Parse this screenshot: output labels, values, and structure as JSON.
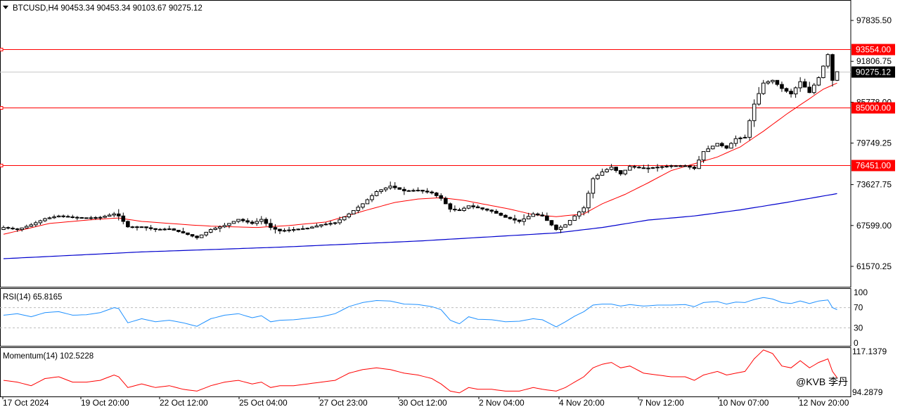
{
  "symbol_header": "BTCUSD,H4  90453.34 90453.34 90103.67 90275.12",
  "watermark": "@KVB 李丹",
  "colors": {
    "level_line": "#ff0000",
    "ma_fast": "#ff0000",
    "ma_slow": "#0000cd",
    "rsi_line": "#1e90ff",
    "momentum_line": "#ff0000",
    "candle": "#000000",
    "current_price_tag": "#000000"
  },
  "chart_data": [
    {
      "type": "candlestick",
      "panel": "price",
      "title": "BTCUSD,H4",
      "ohlc_header": [
        90453.34,
        90453.34,
        90103.67,
        90275.12
      ],
      "ylim": [
        58556,
        100850
      ],
      "y_ticks": [
        97835.5,
        91806.75,
        85778.0,
        79749.25,
        73627.75,
        67599.0,
        61570.25
      ],
      "x_ticks": [
        "17 Oct 2024",
        "19 Oct 20:00",
        "22 Oct 12:00",
        "25 Oct 04:00",
        "27 Oct 23:00",
        "30 Oct 12:00",
        "2 Nov 04:00",
        "4 Nov 20:00",
        "7 Nov 12:00",
        "10 Nov 07:00",
        "12 Nov 20:00"
      ],
      "horizontal_levels": [
        93554.0,
        85000.0,
        76451.0
      ],
      "current_price": 90275.12,
      "series": [
        {
          "kind": "candles",
          "close_anchors": [
            [
              0,
              67300
            ],
            [
              3,
              67000
            ],
            [
              6,
              67700
            ],
            [
              9,
              68600
            ],
            [
              12,
              69000
            ],
            [
              15,
              68800
            ],
            [
              18,
              68700
            ],
            [
              21,
              68800
            ],
            [
              24,
              69300
            ],
            [
              25,
              69000
            ],
            [
              27,
              67400
            ],
            [
              30,
              67400
            ],
            [
              33,
              67000
            ],
            [
              36,
              67100
            ],
            [
              39,
              66500
            ],
            [
              42,
              65800
            ],
            [
              45,
              67000
            ],
            [
              48,
              67600
            ],
            [
              51,
              68500
            ],
            [
              54,
              67900
            ],
            [
              56,
              68500
            ],
            [
              58,
              67300
            ],
            [
              60,
              66800
            ],
            [
              63,
              67000
            ],
            [
              66,
              67200
            ],
            [
              69,
              67700
            ],
            [
              72,
              68000
            ],
            [
              75,
              69300
            ],
            [
              78,
              70800
            ],
            [
              81,
              72600
            ],
            [
              84,
              73400
            ],
            [
              87,
              72700
            ],
            [
              90,
              72800
            ],
            [
              93,
              72400
            ],
            [
              95,
              71600
            ],
            [
              97,
              70000
            ],
            [
              99,
              69800
            ],
            [
              101,
              70500
            ],
            [
              103,
              70200
            ],
            [
              106,
              69700
            ],
            [
              109,
              68800
            ],
            [
              112,
              68200
            ],
            [
              115,
              69300
            ],
            [
              117,
              69000
            ],
            [
              120,
              67000
            ],
            [
              122,
              67700
            ],
            [
              124,
              69000
            ],
            [
              126,
              70200
            ],
            [
              128,
              74500
            ],
            [
              130,
              75500
            ],
            [
              132,
              76200
            ],
            [
              134,
              75200
            ],
            [
              136,
              76300
            ],
            [
              139,
              76000
            ],
            [
              142,
              76200
            ],
            [
              145,
              76400
            ],
            [
              148,
              76400
            ],
            [
              150,
              76000
            ],
            [
              152,
              78500
            ],
            [
              155,
              79700
            ],
            [
              157,
              79000
            ],
            [
              159,
              80400
            ],
            [
              161,
              80600
            ],
            [
              163,
              85500
            ],
            [
              165,
              88600
            ],
            [
              167,
              89000
            ],
            [
              169,
              87800
            ],
            [
              171,
              87000
            ],
            [
              173,
              88800
            ],
            [
              175,
              87200
            ],
            [
              177,
              89400
            ],
            [
              179,
              92800
            ],
            [
              180,
              89000
            ],
            [
              181,
              90275
            ]
          ]
        },
        {
          "name": "",
          "kind": "ma_fast",
          "anchors": [
            [
              0,
              66300
            ],
            [
              10,
              67900
            ],
            [
              20,
              68500
            ],
            [
              25,
              68700
            ],
            [
              30,
              68200
            ],
            [
              40,
              67700
            ],
            [
              45,
              67500
            ],
            [
              55,
              67300
            ],
            [
              62,
              67600
            ],
            [
              70,
              68100
            ],
            [
              78,
              69700
            ],
            [
              85,
              71000
            ],
            [
              90,
              71500
            ],
            [
              95,
              71700
            ],
            [
              100,
              71300
            ],
            [
              110,
              70000
            ],
            [
              115,
              69200
            ],
            [
              120,
              68900
            ],
            [
              126,
              69300
            ],
            [
              130,
              70800
            ],
            [
              135,
              72200
            ],
            [
              140,
              73900
            ],
            [
              145,
              75700
            ],
            [
              150,
              76700
            ],
            [
              155,
              77700
            ],
            [
              160,
              79200
            ],
            [
              165,
              81500
            ],
            [
              170,
              84000
            ],
            [
              175,
              86300
            ],
            [
              178,
              87700
            ],
            [
              181,
              88600
            ]
          ]
        },
        {
          "name": "",
          "kind": "ma_slow",
          "anchors": [
            [
              0,
              62700
            ],
            [
              30,
              63700
            ],
            [
              60,
              64400
            ],
            [
              90,
              65300
            ],
            [
              120,
              66500
            ],
            [
              130,
              67300
            ],
            [
              140,
              68400
            ],
            [
              150,
              69000
            ],
            [
              160,
              69900
            ],
            [
              170,
              71000
            ],
            [
              181,
              72300
            ]
          ]
        }
      ]
    },
    {
      "type": "line",
      "panel": "rsi",
      "title": "RSI(14) 65.8165",
      "value": 65.8165,
      "ylim": [
        0,
        100
      ],
      "y_ticks": [
        100,
        70,
        30,
        0
      ],
      "levels": [
        70,
        30
      ],
      "series": [
        {
          "name": "RSI(14)",
          "anchors": [
            [
              0,
              55
            ],
            [
              3,
              58
            ],
            [
              6,
              52
            ],
            [
              9,
              60
            ],
            [
              12,
              62
            ],
            [
              15,
              55
            ],
            [
              18,
              56
            ],
            [
              21,
              60
            ],
            [
              24,
              70
            ],
            [
              25,
              68
            ],
            [
              27,
              40
            ],
            [
              30,
              48
            ],
            [
              33,
              42
            ],
            [
              36,
              45
            ],
            [
              39,
              40
            ],
            [
              42,
              33
            ],
            [
              45,
              48
            ],
            [
              48,
              55
            ],
            [
              51,
              58
            ],
            [
              54,
              50
            ],
            [
              56,
              54
            ],
            [
              58,
              42
            ],
            [
              60,
              45
            ],
            [
              63,
              46
            ],
            [
              66,
              49
            ],
            [
              69,
              52
            ],
            [
              72,
              58
            ],
            [
              75,
              72
            ],
            [
              78,
              80
            ],
            [
              81,
              84
            ],
            [
              84,
              83
            ],
            [
              87,
              77
            ],
            [
              90,
              76
            ],
            [
              93,
              72
            ],
            [
              95,
              66
            ],
            [
              97,
              45
            ],
            [
              99,
              38
            ],
            [
              101,
              52
            ],
            [
              103,
              47
            ],
            [
              106,
              46
            ],
            [
              109,
              42
            ],
            [
              112,
              43
            ],
            [
              115,
              48
            ],
            [
              117,
              46
            ],
            [
              120,
              32
            ],
            [
              122,
              42
            ],
            [
              124,
              53
            ],
            [
              126,
              62
            ],
            [
              128,
              75
            ],
            [
              130,
              77
            ],
            [
              132,
              77
            ],
            [
              134,
              73
            ],
            [
              136,
              76
            ],
            [
              139,
              73
            ],
            [
              142,
              75
            ],
            [
              145,
              75
            ],
            [
              148,
              76
            ],
            [
              150,
              72
            ],
            [
              152,
              80
            ],
            [
              155,
              82
            ],
            [
              157,
              77
            ],
            [
              159,
              81
            ],
            [
              161,
              80
            ],
            [
              163,
              86
            ],
            [
              165,
              90
            ],
            [
              167,
              87
            ],
            [
              169,
              80
            ],
            [
              171,
              78
            ],
            [
              173,
              83
            ],
            [
              175,
              78
            ],
            [
              177,
              83
            ],
            [
              179,
              85
            ],
            [
              180,
              70
            ],
            [
              181,
              66
            ]
          ]
        }
      ]
    },
    {
      "type": "line",
      "panel": "momentum",
      "title": "Momentum(14) 102.5228",
      "value": 102.5228,
      "ylim": [
        92,
        119.5
      ],
      "y_ticks": [
        117.1379,
        94.2879
      ],
      "series": [
        {
          "name": "Momentum(14)",
          "anchors": [
            [
              0,
              101
            ],
            [
              3,
              100
            ],
            [
              6,
              98
            ],
            [
              9,
              102
            ],
            [
              12,
              103
            ],
            [
              15,
              100
            ],
            [
              18,
              100
            ],
            [
              21,
              101
            ],
            [
              24,
              104
            ],
            [
              25,
              103
            ],
            [
              27,
              97
            ],
            [
              30,
              99
            ],
            [
              33,
              97
            ],
            [
              36,
              98
            ],
            [
              39,
              96
            ],
            [
              42,
              95
            ],
            [
              45,
              98
            ],
            [
              48,
              100
            ],
            [
              51,
              101
            ],
            [
              54,
              99
            ],
            [
              56,
              100
            ],
            [
              58,
              97
            ],
            [
              60,
              98
            ],
            [
              63,
              98
            ],
            [
              66,
              99
            ],
            [
              69,
              100
            ],
            [
              72,
              101
            ],
            [
              75,
              105
            ],
            [
              78,
              107
            ],
            [
              81,
              108
            ],
            [
              84,
              107
            ],
            [
              87,
              105
            ],
            [
              90,
              104
            ],
            [
              93,
              102
            ],
            [
              95,
              99
            ],
            [
              97,
              95
            ],
            [
              99,
              94
            ],
            [
              101,
              97
            ],
            [
              103,
              96
            ],
            [
              106,
              96
            ],
            [
              109,
              95
            ],
            [
              112,
              95
            ],
            [
              115,
              97
            ],
            [
              117,
              96
            ],
            [
              120,
              95
            ],
            [
              122,
              97
            ],
            [
              124,
              100
            ],
            [
              126,
              103
            ],
            [
              128,
              108
            ],
            [
              130,
              110
            ],
            [
              132,
              111
            ],
            [
              134,
              108
            ],
            [
              136,
              109
            ],
            [
              139,
              105
            ],
            [
              142,
              104
            ],
            [
              145,
              103
            ],
            [
              148,
              103
            ],
            [
              150,
              101
            ],
            [
              152,
              104
            ],
            [
              155,
              106
            ],
            [
              157,
              104
            ],
            [
              159,
              105
            ],
            [
              161,
              106
            ],
            [
              163,
              113
            ],
            [
              165,
              118
            ],
            [
              167,
              116
            ],
            [
              169,
              109
            ],
            [
              171,
              108
            ],
            [
              173,
              112
            ],
            [
              175,
              108
            ],
            [
              177,
              111
            ],
            [
              179,
              113
            ],
            [
              180,
              106
            ],
            [
              181,
              102.5
            ]
          ]
        }
      ]
    }
  ]
}
